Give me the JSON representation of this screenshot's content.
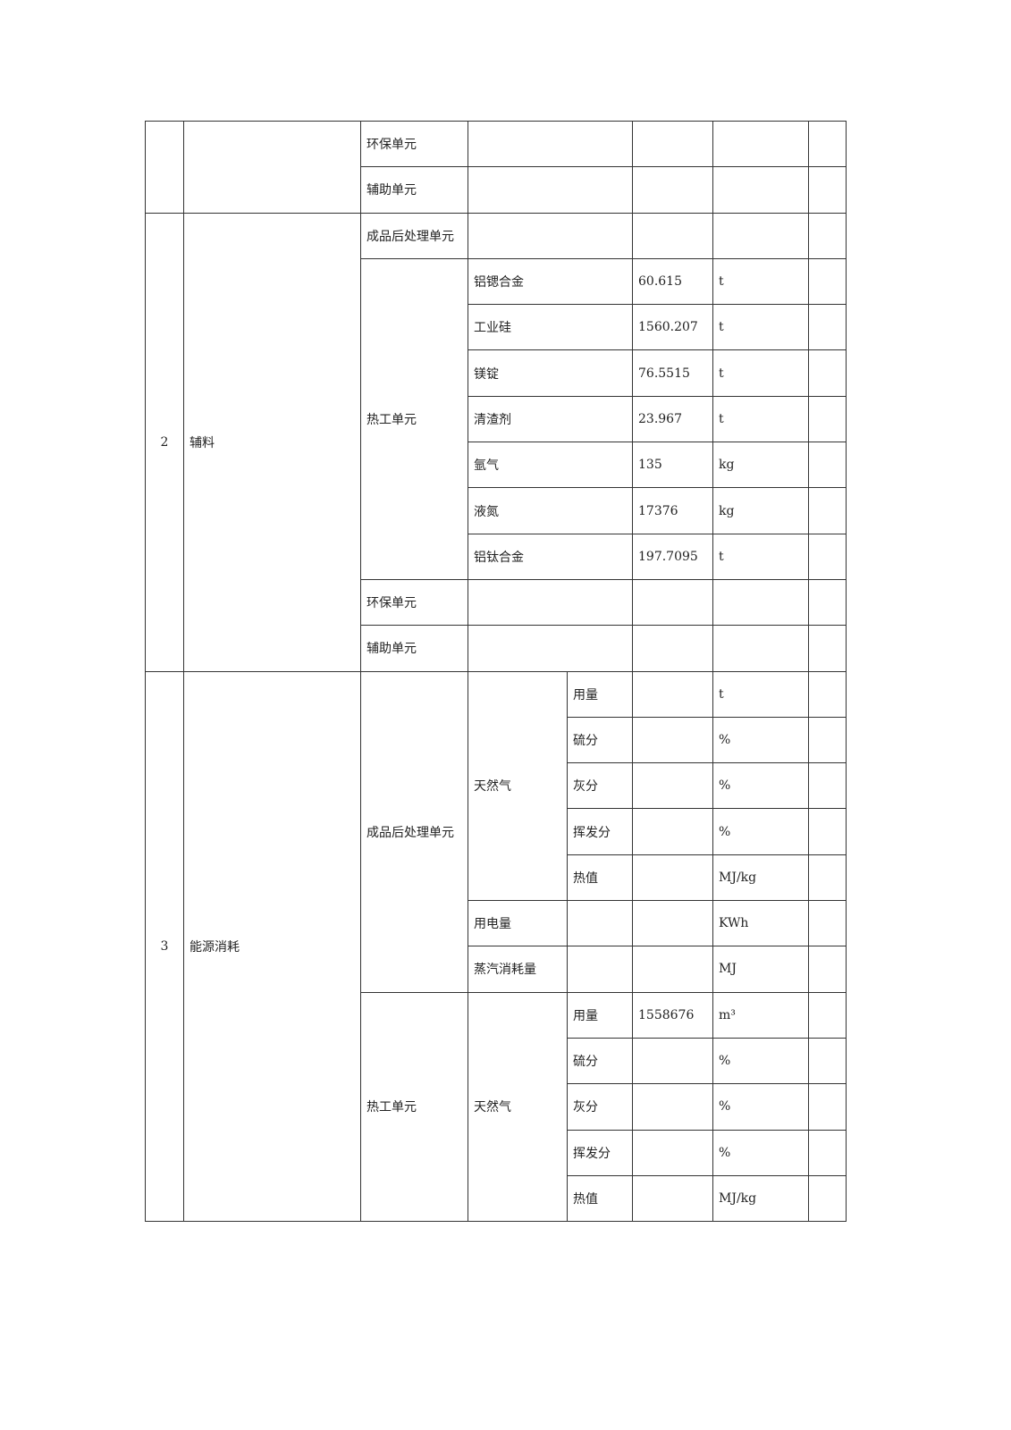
{
  "rows": {
    "r0_unit": "环保单元",
    "r1_unit": "辅助单元",
    "sec2": {
      "index": "2",
      "category": "辅料",
      "unit_post": "成品后处理单元",
      "unit_hot": "热工单元",
      "items": [
        {
          "name": "铝锶合金",
          "value": "60.615",
          "unit": "t"
        },
        {
          "name": "工业硅",
          "value": "1560.207",
          "unit": "t"
        },
        {
          "name": "镁锭",
          "value": "76.5515",
          "unit": "t"
        },
        {
          "name": "清渣剂",
          "value": "23.967",
          "unit": "t"
        },
        {
          "name": "氩气",
          "value": "135",
          "unit": "kg"
        },
        {
          "name": "液氮",
          "value": "17376",
          "unit": "kg"
        },
        {
          "name": "铝钛合金",
          "value": "197.7095",
          "unit": "t"
        }
      ],
      "unit_env": "环保单元",
      "unit_aux": "辅助单元"
    },
    "sec3": {
      "index": "3",
      "category": "能源消耗",
      "unit_post": "成品后处理单元",
      "unit_hot": "热工单元",
      "gas": "天然气",
      "post_gas": [
        {
          "name": "用量",
          "value": "",
          "unit": "t"
        },
        {
          "name": "硫分",
          "value": "",
          "unit": "%"
        },
        {
          "name": "灰分",
          "value": "",
          "unit": "%"
        },
        {
          "name": "挥发分",
          "value": "",
          "unit": "%"
        },
        {
          "name": "热值",
          "value": "",
          "unit": "MJ/kg"
        }
      ],
      "electricity": {
        "name": "用电量",
        "unit": "KWh"
      },
      "steam": {
        "name": "蒸汽消耗量",
        "unit": "MJ"
      },
      "hot_gas": [
        {
          "name": "用量",
          "value": "1558676",
          "unit": "m³"
        },
        {
          "name": "硫分",
          "value": "",
          "unit": "%"
        },
        {
          "name": "灰分",
          "value": "",
          "unit": "%"
        },
        {
          "name": "挥发分",
          "value": "",
          "unit": "%"
        },
        {
          "name": "热值",
          "value": "",
          "unit": "MJ/kg"
        }
      ]
    }
  }
}
